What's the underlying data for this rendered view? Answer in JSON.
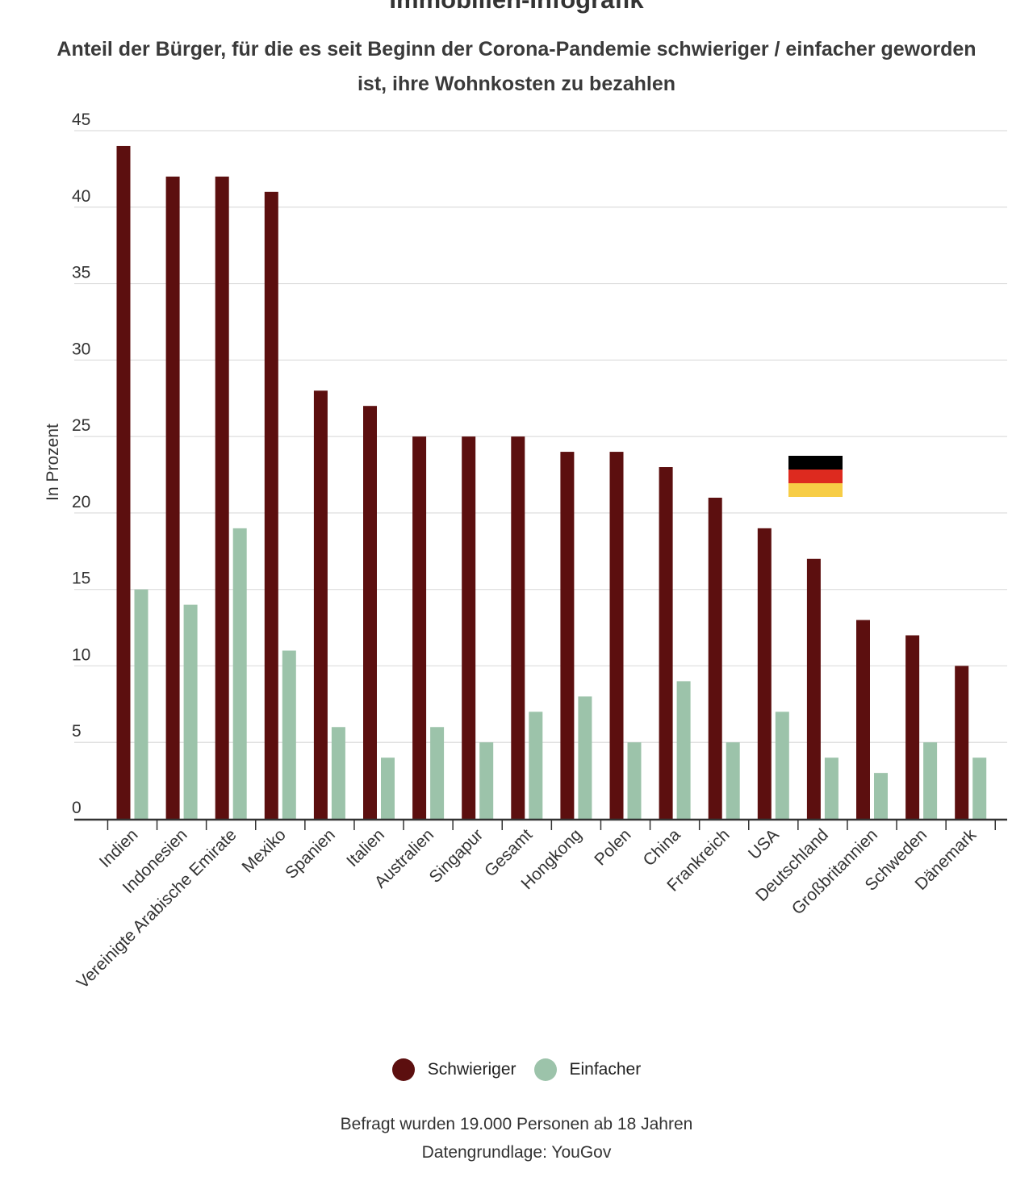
{
  "header": {
    "title": "Immobilien-Infografik",
    "subtitle": "Anteil der Bürger, für die es seit Beginn der Corona-Pandemie schwieriger / einfacher geworden ist, ihre Wohnkosten zu bezahlen"
  },
  "colors": {
    "schwieriger": "#5c0f0f",
    "einfacher": "#9cc3aa",
    "grid": "#dddddd",
    "axis": "#333333",
    "flag_black": "#000000",
    "flag_red": "#dd2a1f",
    "flag_gold": "#f7cd46"
  },
  "chart_data": {
    "type": "bar",
    "title": "Immobilien-Infografik",
    "xlabel": "",
    "ylabel": "In Prozent",
    "ylim": [
      0,
      45
    ],
    "yticks": [
      0,
      5,
      10,
      15,
      20,
      25,
      30,
      35,
      40,
      45
    ],
    "grid": true,
    "legend_position": "bottom",
    "categories": [
      "Indien",
      "Indonesien",
      "Vereinigte Arabische Emirate",
      "Mexiko",
      "Spanien",
      "Italien",
      "Australien",
      "Singapur",
      "Gesamt",
      "Hongkong",
      "Polen",
      "China",
      "Frankreich",
      "USA",
      "Deutschland",
      "Großbritannien",
      "Schweden",
      "Dänemark"
    ],
    "series": [
      {
        "name": "Schwieriger",
        "values": [
          44,
          42,
          42,
          41,
          28,
          27,
          25,
          25,
          25,
          24,
          24,
          23,
          21,
          19,
          17,
          13,
          12,
          10
        ]
      },
      {
        "name": "Einfacher",
        "values": [
          15,
          14,
          19,
          11,
          6,
          4,
          6,
          5,
          7,
          8,
          5,
          9,
          5,
          7,
          4,
          3,
          5,
          4
        ]
      }
    ],
    "highlight_flag": "Deutschland"
  },
  "legend": {
    "items": [
      {
        "label": "Schwieriger"
      },
      {
        "label": "Einfacher"
      }
    ]
  },
  "footer": {
    "line1": "Befragt wurden 19.000 Personen ab 18 Jahren",
    "line2": "Datengrundlage: YouGov"
  }
}
